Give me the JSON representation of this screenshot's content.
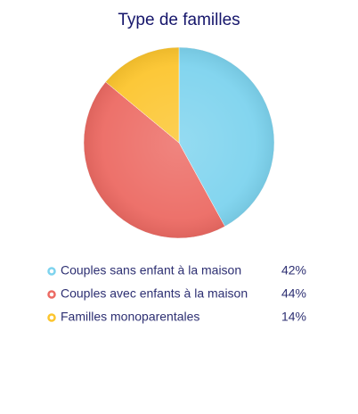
{
  "chart_data": {
    "type": "pie",
    "title": "Type de familles",
    "categories": [
      "Couples sans enfant à la maison",
      "Couples avec enfants à la maison",
      "Familles monoparentales"
    ],
    "values": [
      42,
      44,
      14
    ],
    "value_labels": [
      "42%",
      "44%",
      "14%"
    ],
    "colors": [
      "#7dd3ee",
      "#ec6a63",
      "#fcc52e"
    ]
  }
}
